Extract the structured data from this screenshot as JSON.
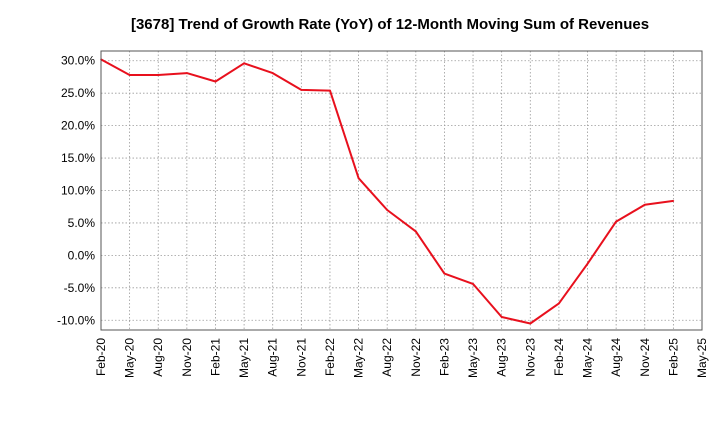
{
  "chart_data": {
    "type": "line",
    "title": "[3678]  Trend of Growth Rate (YoY) of 12-Month Moving Sum of Revenues",
    "xlabel": "",
    "ylabel": "",
    "x_tick_labels": [
      "Feb-20",
      "May-20",
      "Aug-20",
      "Nov-20",
      "Feb-21",
      "May-21",
      "Aug-21",
      "Nov-21",
      "Feb-22",
      "May-22",
      "Aug-22",
      "Nov-22",
      "Feb-23",
      "May-23",
      "Aug-23",
      "Nov-23",
      "Feb-24",
      "May-24",
      "Aug-24",
      "Nov-24",
      "Feb-25",
      "May-25"
    ],
    "y_tick_values": [
      30.0,
      25.0,
      20.0,
      15.0,
      10.0,
      5.0,
      0.0,
      -5.0,
      -10.0
    ],
    "y_tick_labels": [
      "30.0%",
      "25.0%",
      "20.0%",
      "15.0%",
      "10.0%",
      "5.0%",
      "0.0%",
      "-5.0%",
      "-10.0%"
    ],
    "ylim": [
      -11.5,
      31.5
    ],
    "grid": true,
    "series": [
      {
        "color": "#e8101d",
        "x": [
          "Feb-20",
          "May-20",
          "Aug-20",
          "Nov-20",
          "Feb-21",
          "May-21",
          "Aug-21",
          "Nov-21",
          "Feb-22",
          "May-22",
          "Aug-22",
          "Nov-22",
          "Feb-23",
          "May-23",
          "Aug-23",
          "Nov-23",
          "Feb-24",
          "May-24",
          "Aug-24",
          "Nov-24",
          "Feb-25"
        ],
        "values": [
          30.2,
          27.8,
          27.8,
          28.1,
          26.8,
          29.6,
          28.1,
          25.5,
          25.4,
          11.9,
          7.0,
          3.7,
          -2.8,
          -4.4,
          -9.5,
          -10.5,
          -7.4,
          -1.3,
          5.2,
          7.8,
          8.4
        ]
      }
    ]
  }
}
